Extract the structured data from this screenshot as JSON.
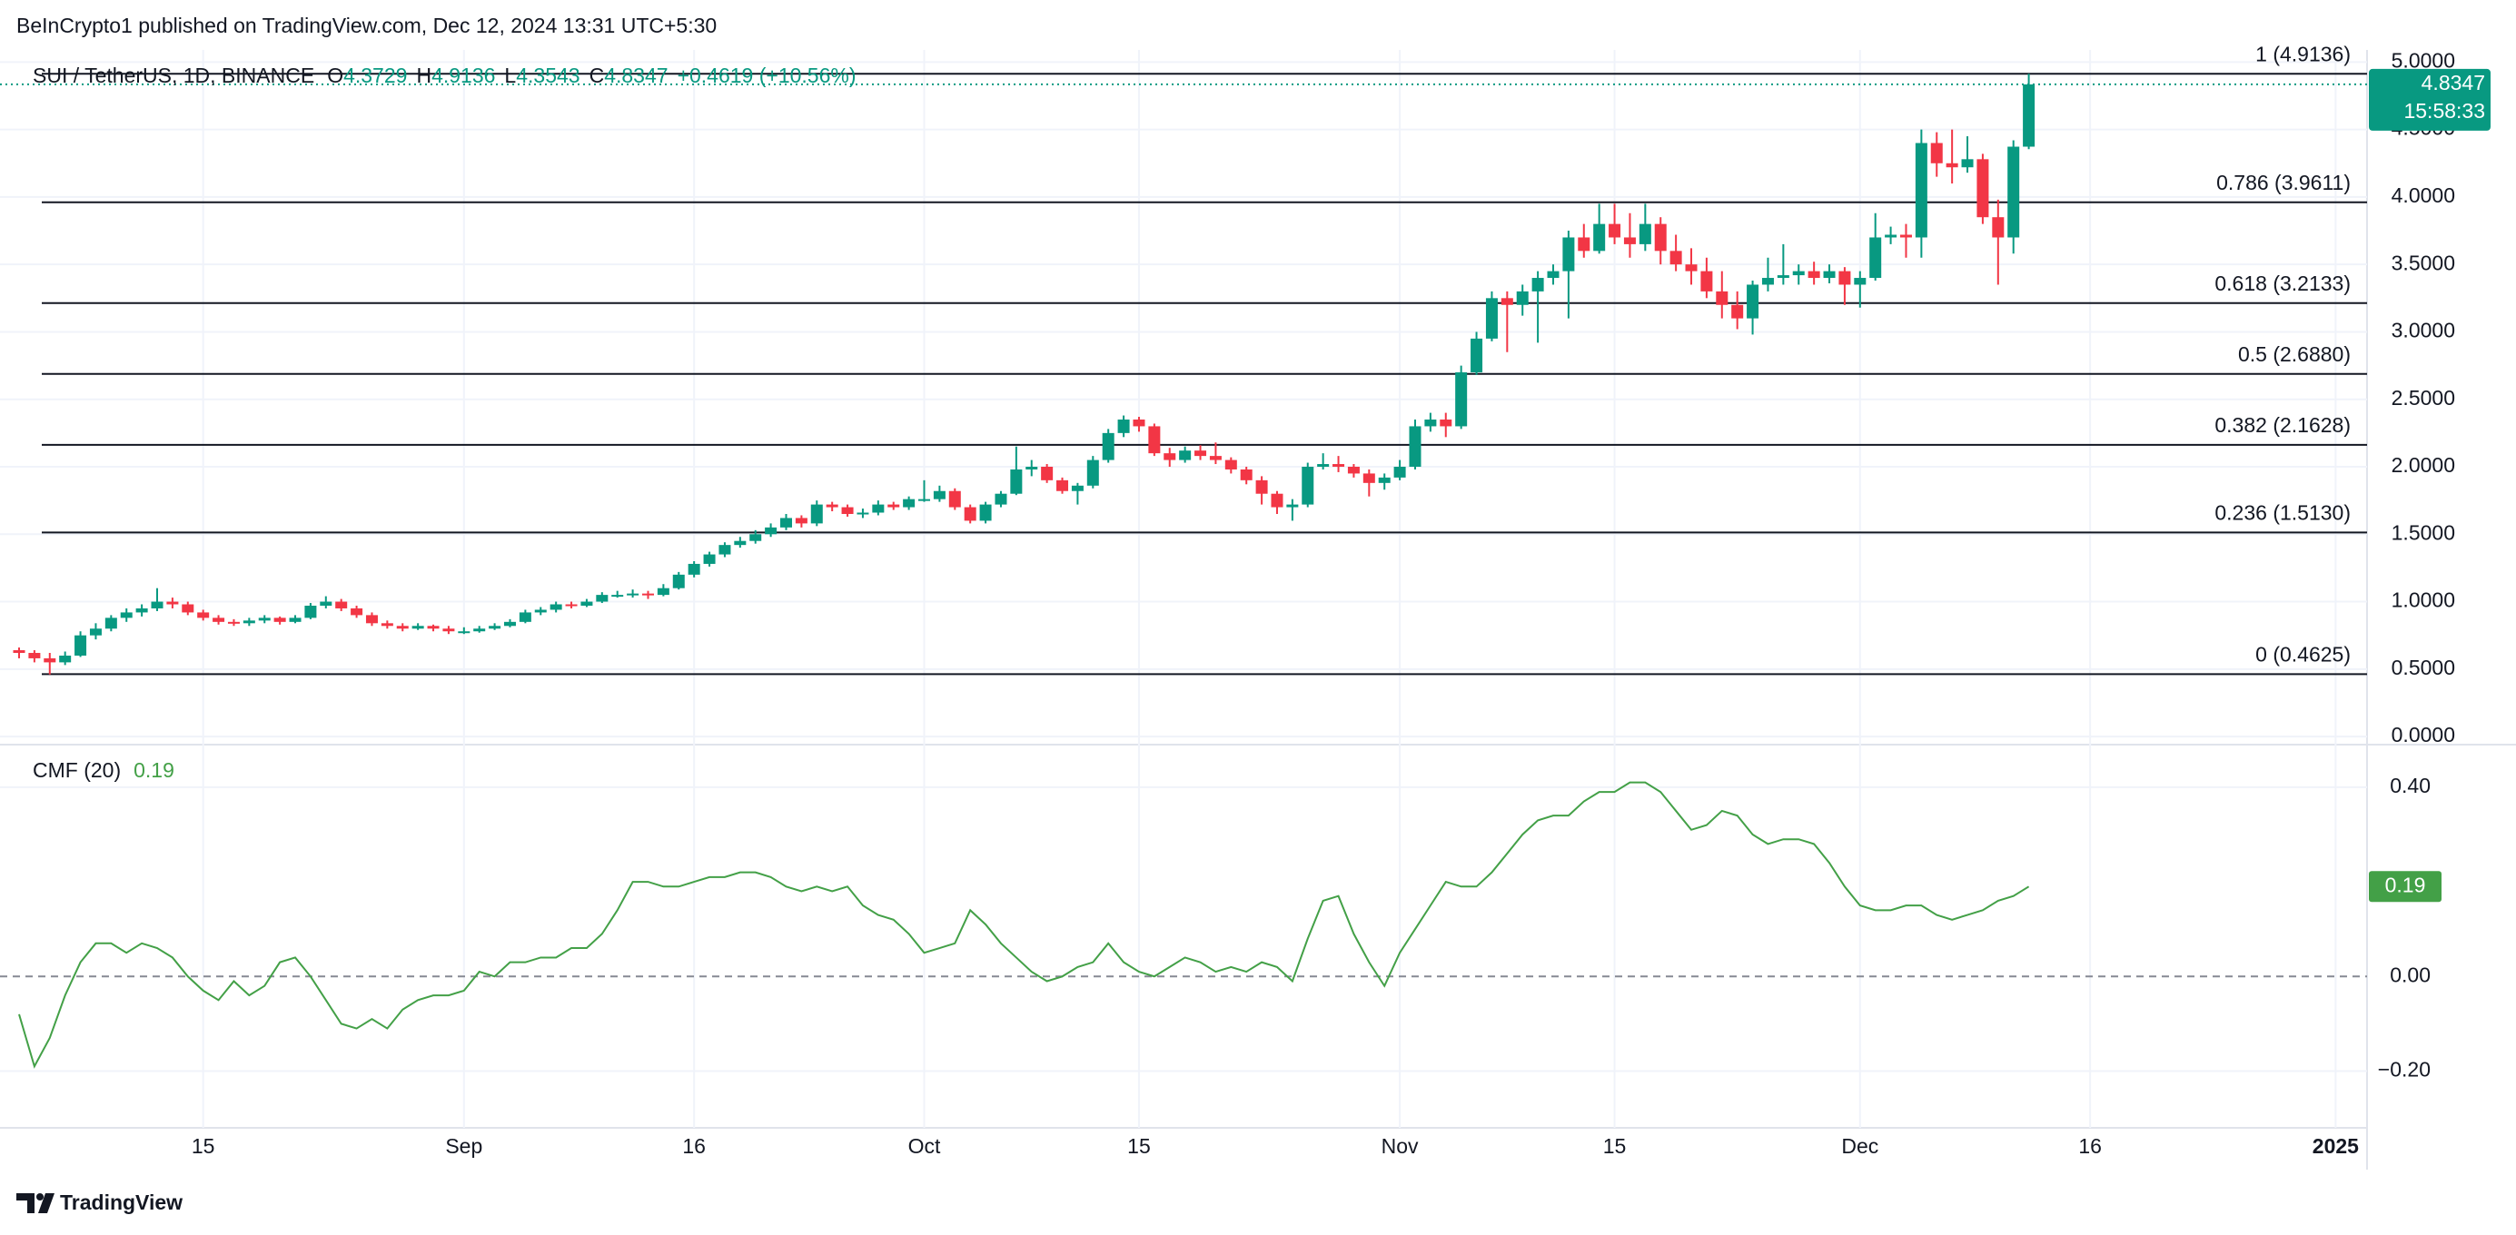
{
  "header": {
    "publisher": "BeInCrypto1 published on TradingView.com, Dec 12, 2024 13:31 UTC+5:30"
  },
  "footer": {
    "brand": "TradingView"
  },
  "chart_data": [
    {
      "type": "candlestick",
      "symbol": "SUI / TetherUS, 1D, BINANCE",
      "ohlc_labels": [
        "O",
        "H",
        "L",
        "C"
      ],
      "change_label": "+0.4619 (+10.56%)",
      "countdown": "15:58:33",
      "up_color": "#089981",
      "down_color": "#f23645",
      "grid": true,
      "categories": [
        null,
        null,
        null,
        null,
        null,
        null,
        null,
        null,
        null,
        null,
        null,
        null,
        "15",
        null,
        null,
        null,
        null,
        null,
        null,
        null,
        null,
        null,
        null,
        null,
        null,
        null,
        null,
        null,
        null,
        "Sep",
        null,
        null,
        null,
        null,
        null,
        null,
        null,
        null,
        null,
        null,
        null,
        null,
        null,
        null,
        "16",
        null,
        null,
        null,
        null,
        null,
        null,
        null,
        null,
        null,
        null,
        null,
        null,
        null,
        null,
        "Oct",
        null,
        null,
        null,
        null,
        null,
        null,
        null,
        null,
        null,
        null,
        null,
        null,
        null,
        "15",
        null,
        null,
        null,
        null,
        null,
        null,
        null,
        null,
        null,
        null,
        null,
        null,
        null,
        null,
        null,
        null,
        "Nov",
        null,
        null,
        null,
        null,
        null,
        null,
        null,
        null,
        null,
        null,
        null,
        null,
        null,
        "15",
        null,
        null,
        null,
        null,
        null,
        null,
        null,
        null,
        null,
        null,
        null,
        null,
        null,
        null,
        null,
        "Dec",
        null,
        null,
        null,
        null,
        null,
        null,
        null,
        null,
        null,
        null,
        null,
        null,
        null,
        null,
        "16",
        null,
        null,
        null,
        null,
        null,
        null,
        null,
        null,
        null,
        null,
        null,
        null,
        null,
        null,
        null,
        "2025",
        null,
        null
      ],
      "candles": [
        [
          0.64,
          0.66,
          0.58,
          0.62
        ],
        [
          0.62,
          0.64,
          0.55,
          0.58
        ],
        [
          0.58,
          0.62,
          0.46,
          0.55
        ],
        [
          0.55,
          0.63,
          0.53,
          0.6
        ],
        [
          0.6,
          0.78,
          0.59,
          0.75
        ],
        [
          0.75,
          0.84,
          0.72,
          0.8
        ],
        [
          0.8,
          0.9,
          0.78,
          0.88
        ],
        [
          0.88,
          0.95,
          0.85,
          0.92
        ],
        [
          0.92,
          0.98,
          0.89,
          0.95
        ],
        [
          0.95,
          1.1,
          0.93,
          1.0
        ],
        [
          1.0,
          1.03,
          0.95,
          0.98
        ],
        [
          0.98,
          1.0,
          0.9,
          0.92
        ],
        [
          0.92,
          0.94,
          0.86,
          0.88
        ],
        [
          0.88,
          0.9,
          0.83,
          0.85
        ],
        [
          0.85,
          0.87,
          0.82,
          0.84
        ],
        [
          0.84,
          0.88,
          0.82,
          0.86
        ],
        [
          0.86,
          0.9,
          0.84,
          0.88
        ],
        [
          0.88,
          0.89,
          0.83,
          0.85
        ],
        [
          0.85,
          0.9,
          0.84,
          0.88
        ],
        [
          0.88,
          0.99,
          0.87,
          0.97
        ],
        [
          0.97,
          1.04,
          0.95,
          1.0
        ],
        [
          1.0,
          1.02,
          0.93,
          0.95
        ],
        [
          0.95,
          0.97,
          0.88,
          0.9
        ],
        [
          0.9,
          0.92,
          0.82,
          0.84
        ],
        [
          0.84,
          0.86,
          0.8,
          0.82
        ],
        [
          0.82,
          0.84,
          0.78,
          0.8
        ],
        [
          0.8,
          0.84,
          0.79,
          0.82
        ],
        [
          0.82,
          0.83,
          0.78,
          0.8
        ],
        [
          0.8,
          0.82,
          0.76,
          0.78
        ],
        [
          0.78,
          0.81,
          0.76,
          0.78
        ],
        [
          0.78,
          0.82,
          0.77,
          0.8
        ],
        [
          0.8,
          0.84,
          0.79,
          0.82
        ],
        [
          0.82,
          0.87,
          0.81,
          0.85
        ],
        [
          0.85,
          0.94,
          0.84,
          0.92
        ],
        [
          0.92,
          0.96,
          0.9,
          0.94
        ],
        [
          0.94,
          1.0,
          0.92,
          0.98
        ],
        [
          0.98,
          1.0,
          0.95,
          0.97
        ],
        [
          0.97,
          1.02,
          0.96,
          1.0
        ],
        [
          1.0,
          1.07,
          0.99,
          1.05
        ],
        [
          1.05,
          1.08,
          1.03,
          1.05
        ],
        [
          1.05,
          1.09,
          1.03,
          1.06
        ],
        [
          1.06,
          1.08,
          1.02,
          1.05
        ],
        [
          1.05,
          1.13,
          1.04,
          1.1
        ],
        [
          1.1,
          1.22,
          1.09,
          1.2
        ],
        [
          1.2,
          1.3,
          1.18,
          1.28
        ],
        [
          1.28,
          1.37,
          1.26,
          1.35
        ],
        [
          1.35,
          1.44,
          1.33,
          1.42
        ],
        [
          1.42,
          1.48,
          1.4,
          1.45
        ],
        [
          1.45,
          1.53,
          1.43,
          1.5
        ],
        [
          1.5,
          1.58,
          1.48,
          1.55
        ],
        [
          1.55,
          1.65,
          1.53,
          1.62
        ],
        [
          1.62,
          1.64,
          1.55,
          1.58
        ],
        [
          1.58,
          1.75,
          1.56,
          1.72
        ],
        [
          1.72,
          1.74,
          1.67,
          1.7
        ],
        [
          1.7,
          1.72,
          1.63,
          1.65
        ],
        [
          1.65,
          1.69,
          1.62,
          1.66
        ],
        [
          1.66,
          1.75,
          1.64,
          1.72
        ],
        [
          1.72,
          1.74,
          1.68,
          1.7
        ],
        [
          1.7,
          1.78,
          1.68,
          1.76
        ],
        [
          1.76,
          1.9,
          1.74,
          1.76
        ],
        [
          1.76,
          1.86,
          1.74,
          1.82
        ],
        [
          1.82,
          1.84,
          1.68,
          1.7
        ],
        [
          1.7,
          1.72,
          1.58,
          1.6
        ],
        [
          1.6,
          1.74,
          1.58,
          1.72
        ],
        [
          1.72,
          1.82,
          1.7,
          1.8
        ],
        [
          1.8,
          2.15,
          1.79,
          1.98
        ],
        [
          1.98,
          2.05,
          1.93,
          2.0
        ],
        [
          2.0,
          2.02,
          1.88,
          1.9
        ],
        [
          1.9,
          1.92,
          1.8,
          1.82
        ],
        [
          1.82,
          1.88,
          1.72,
          1.86
        ],
        [
          1.86,
          2.08,
          1.84,
          2.05
        ],
        [
          2.05,
          2.28,
          2.03,
          2.25
        ],
        [
          2.25,
          2.38,
          2.22,
          2.35
        ],
        [
          2.35,
          2.37,
          2.26,
          2.3
        ],
        [
          2.3,
          2.32,
          2.08,
          2.1
        ],
        [
          2.1,
          2.14,
          2.0,
          2.05
        ],
        [
          2.05,
          2.15,
          2.03,
          2.12
        ],
        [
          2.12,
          2.16,
          2.05,
          2.08
        ],
        [
          2.08,
          2.18,
          2.02,
          2.05
        ],
        [
          2.05,
          2.07,
          1.95,
          1.98
        ],
        [
          1.98,
          2.0,
          1.87,
          1.9
        ],
        [
          1.9,
          1.93,
          1.72,
          1.8
        ],
        [
          1.8,
          1.82,
          1.65,
          1.7
        ],
        [
          1.7,
          1.76,
          1.6,
          1.72
        ],
        [
          1.72,
          2.03,
          1.7,
          2.0
        ],
        [
          2.0,
          2.1,
          1.98,
          2.02
        ],
        [
          2.02,
          2.08,
          1.96,
          2.0
        ],
        [
          2.0,
          2.02,
          1.92,
          1.95
        ],
        [
          1.95,
          1.98,
          1.78,
          1.88
        ],
        [
          1.88,
          1.95,
          1.83,
          1.92
        ],
        [
          1.92,
          2.05,
          1.9,
          2.0
        ],
        [
          2.0,
          2.35,
          1.98,
          2.3
        ],
        [
          2.3,
          2.4,
          2.26,
          2.35
        ],
        [
          2.35,
          2.4,
          2.22,
          2.3
        ],
        [
          2.3,
          2.75,
          2.28,
          2.7
        ],
        [
          2.7,
          3.0,
          2.68,
          2.95
        ],
        [
          2.95,
          3.3,
          2.93,
          3.25
        ],
        [
          3.25,
          3.3,
          2.85,
          3.2
        ],
        [
          3.2,
          3.35,
          3.12,
          3.3
        ],
        [
          3.3,
          3.45,
          2.92,
          3.4
        ],
        [
          3.4,
          3.5,
          3.35,
          3.45
        ],
        [
          3.45,
          3.75,
          3.1,
          3.7
        ],
        [
          3.7,
          3.8,
          3.55,
          3.6
        ],
        [
          3.6,
          3.95,
          3.58,
          3.8
        ],
        [
          3.8,
          3.95,
          3.65,
          3.7
        ],
        [
          3.7,
          3.88,
          3.55,
          3.65
        ],
        [
          3.65,
          3.95,
          3.6,
          3.8
        ],
        [
          3.8,
          3.85,
          3.5,
          3.6
        ],
        [
          3.6,
          3.72,
          3.45,
          3.5
        ],
        [
          3.5,
          3.62,
          3.35,
          3.45
        ],
        [
          3.45,
          3.55,
          3.25,
          3.3
        ],
        [
          3.3,
          3.45,
          3.1,
          3.2
        ],
        [
          3.2,
          3.3,
          3.02,
          3.1
        ],
        [
          3.1,
          3.38,
          2.98,
          3.35
        ],
        [
          3.35,
          3.55,
          3.3,
          3.4
        ],
        [
          3.4,
          3.65,
          3.35,
          3.42
        ],
        [
          3.42,
          3.5,
          3.35,
          3.45
        ],
        [
          3.45,
          3.52,
          3.35,
          3.4
        ],
        [
          3.4,
          3.5,
          3.36,
          3.45
        ],
        [
          3.45,
          3.48,
          3.2,
          3.35
        ],
        [
          3.35,
          3.45,
          3.18,
          3.4
        ],
        [
          3.4,
          3.88,
          3.38,
          3.7
        ],
        [
          3.7,
          3.78,
          3.65,
          3.72
        ],
        [
          3.72,
          3.8,
          3.55,
          3.7
        ],
        [
          3.7,
          4.5,
          3.55,
          4.4
        ],
        [
          4.4,
          4.48,
          4.15,
          4.25
        ],
        [
          4.25,
          4.5,
          4.1,
          4.22
        ],
        [
          4.22,
          4.45,
          4.18,
          4.28
        ],
        [
          4.28,
          4.32,
          3.8,
          3.85
        ],
        [
          3.85,
          3.98,
          3.35,
          3.7
        ],
        [
          3.7,
          4.42,
          3.58,
          4.3729
        ],
        [
          4.3729,
          4.9136,
          4.3543,
          4.8347
        ],
        null,
        null,
        null,
        null,
        null,
        null,
        null,
        null,
        null,
        null,
        null,
        null,
        null,
        null,
        null,
        null,
        null,
        null,
        null,
        null,
        null,
        null
      ],
      "ylim": [
        -0.06,
        5.09
      ],
      "yticks": [
        {
          "value": 0,
          "label": "0.0000"
        },
        {
          "value": 0.5,
          "label": "0.5000"
        },
        {
          "value": 1,
          "label": "1.0000"
        },
        {
          "value": 1.5,
          "label": "1.5000"
        },
        {
          "value": 2,
          "label": "2.0000"
        },
        {
          "value": 2.5,
          "label": "2.5000"
        },
        {
          "value": 3,
          "label": "3.0000"
        },
        {
          "value": 3.5,
          "label": "3.5000"
        },
        {
          "value": 4,
          "label": "4.0000"
        },
        {
          "value": 4.5,
          "label": "4.5000"
        },
        {
          "value": 5,
          "label": "5.0000"
        }
      ],
      "fib_levels": [
        {
          "value": 4.9136,
          "label": "1 (4.9136)"
        },
        {
          "value": 3.9611,
          "label": "0.786 (3.9611)"
        },
        {
          "value": 3.2133,
          "label": "0.618 (3.2133)"
        },
        {
          "value": 2.688,
          "label": "0.5 (2.6880)"
        },
        {
          "value": 2.1628,
          "label": "0.382 (2.1628)"
        },
        {
          "value": 1.513,
          "label": "0.236 (1.5130)"
        },
        {
          "value": 0.4625,
          "label": "0 (0.4625)"
        }
      ]
    },
    {
      "type": "line",
      "series": [
        {
          "name": "CMF (20)",
          "color": "#43a047",
          "values": [
            -0.08,
            -0.19,
            -0.13,
            -0.04,
            0.03,
            0.07,
            0.07,
            0.05,
            0.07,
            0.06,
            0.04,
            0.0,
            -0.03,
            -0.05,
            -0.01,
            -0.04,
            -0.02,
            0.03,
            0.04,
            0.0,
            -0.05,
            -0.1,
            -0.11,
            -0.09,
            -0.11,
            -0.07,
            -0.05,
            -0.04,
            -0.04,
            -0.03,
            0.01,
            0.0,
            0.03,
            0.03,
            0.04,
            0.04,
            0.06,
            0.06,
            0.09,
            0.14,
            0.2,
            0.2,
            0.19,
            0.19,
            0.2,
            0.21,
            0.21,
            0.22,
            0.22,
            0.21,
            0.19,
            0.18,
            0.19,
            0.18,
            0.19,
            0.15,
            0.13,
            0.12,
            0.09,
            0.05,
            0.06,
            0.07,
            0.14,
            0.11,
            0.07,
            0.04,
            0.01,
            -0.01,
            0.0,
            0.02,
            0.03,
            0.07,
            0.03,
            0.01,
            0.0,
            0.02,
            0.04,
            0.03,
            0.01,
            0.02,
            0.01,
            0.03,
            0.02,
            -0.01,
            0.08,
            0.16,
            0.17,
            0.09,
            0.03,
            -0.02,
            0.05,
            0.1,
            0.15,
            0.2,
            0.19,
            0.19,
            0.22,
            0.26,
            0.3,
            0.33,
            0.34,
            0.34,
            0.37,
            0.39,
            0.39,
            0.41,
            0.41,
            0.39,
            0.35,
            0.31,
            0.32,
            0.35,
            0.34,
            0.3,
            0.28,
            0.29,
            0.29,
            0.28,
            0.24,
            0.19,
            0.15,
            0.14,
            0.14,
            0.15,
            0.15,
            0.13,
            0.12,
            0.13,
            0.14,
            0.16,
            0.17,
            0.19,
            null,
            null,
            null,
            null,
            null,
            null,
            null,
            null,
            null,
            null,
            null,
            null,
            null,
            null,
            null,
            null,
            null,
            null,
            null,
            null,
            null,
            null
          ]
        }
      ],
      "ylim": [
        -0.32,
        0.49
      ],
      "yticks": [
        {
          "value": 0.4,
          "label": "0.40"
        },
        {
          "value": 0,
          "label": "0.00"
        },
        {
          "value": -0.2,
          "label": "−0.20"
        }
      ]
    }
  ]
}
